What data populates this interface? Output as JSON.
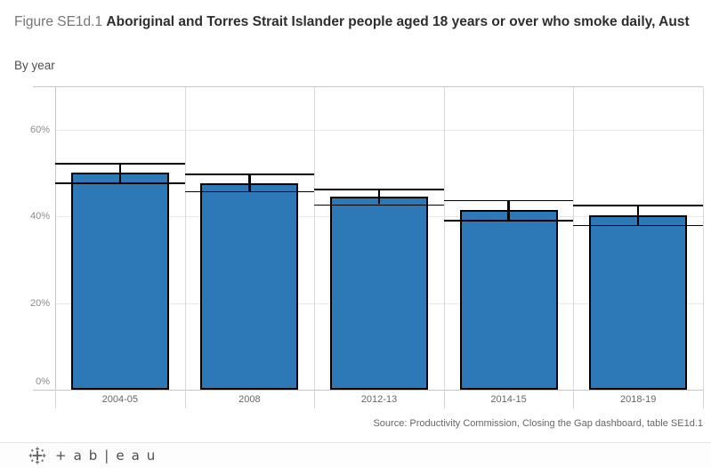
{
  "title": {
    "prefix": "Figure SE1d.1 ",
    "main": "Aboriginal and Torres Strait Islander people aged 18 years or over who smoke daily, Aust",
    "subtitle": "By year"
  },
  "source": "Source: Productivity Commission, Closing the Gap dashboard, table SE1d.1",
  "footer": {
    "brand": "tableau",
    "wordmark": "+ab|eau"
  },
  "colors": {
    "bar_fill": "#2d79b8",
    "bar_border": "#000000",
    "whisker": "#000000",
    "gridline": "#e9e9e9",
    "column_divider": "#d9d9d9",
    "frame": "#c6c6c6",
    "y_tick_label": "#8c8c8c",
    "x_label": "#666666",
    "title_prefix": "#767676",
    "title_main": "#2e2e2e",
    "subtitle": "#4f4f4f",
    "source_text": "#666666"
  },
  "chart_data": {
    "type": "bar",
    "title": "Figure SE1d.1 Aboriginal and Torres Strait Islander people aged 18 years or over who smoke daily, Aust",
    "subtitle": "By year",
    "categories": [
      "2004-05",
      "2008",
      "2012-13",
      "2014-15",
      "2018-19"
    ],
    "values": [
      50.0,
      47.7,
      44.6,
      41.4,
      40.2
    ],
    "error_bars": {
      "ci_low": [
        47.8,
        45.8,
        42.8,
        39.2,
        38.0
      ],
      "ci_high": [
        52.3,
        49.8,
        46.3,
        43.8,
        42.6
      ]
    },
    "xlabel": "",
    "ylabel": "",
    "ylim": [
      0,
      70
    ],
    "y_ticks": [
      0,
      20,
      40,
      60
    ],
    "y_tick_labels": [
      "0%",
      "20%",
      "40%",
      "60%"
    ],
    "grid": true,
    "legend": false,
    "units": "percent"
  }
}
